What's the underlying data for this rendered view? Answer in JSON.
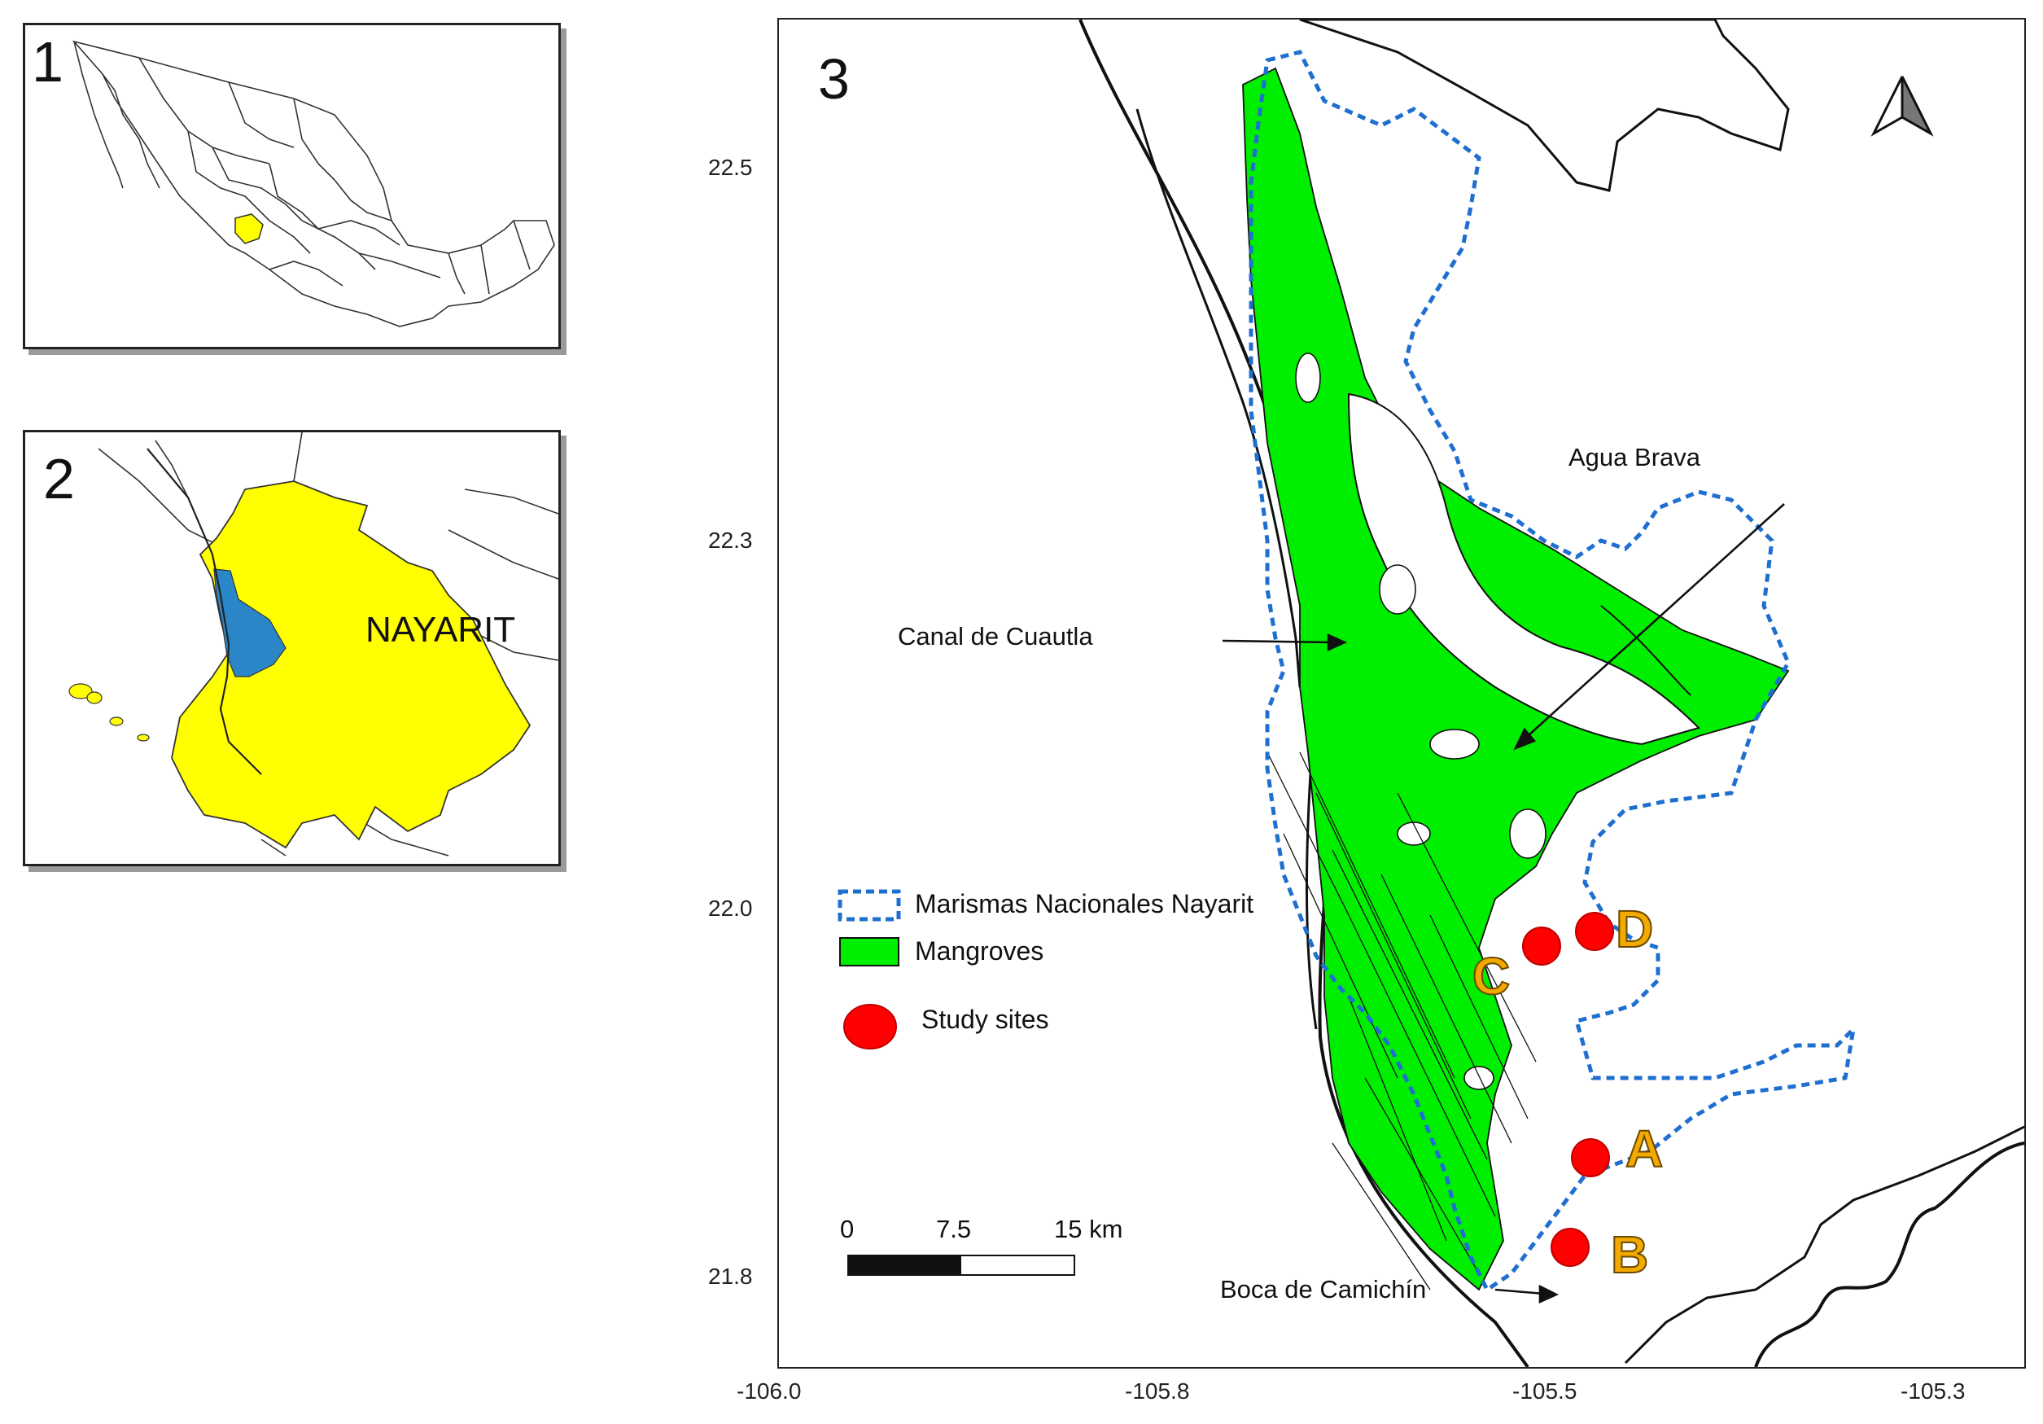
{
  "panels": {
    "p1": {
      "number": "1"
    },
    "p2": {
      "number": "2",
      "state_label": "NAYARIT"
    },
    "p3": {
      "number": "3"
    }
  },
  "axes": {
    "x_ticks": [
      "-106.0",
      "-105.8",
      "-105.5",
      "-105.3"
    ],
    "y_ticks": [
      "22.5",
      "22.3",
      "22.0",
      "21.8"
    ]
  },
  "place_labels": {
    "agua_brava": "Agua Brava",
    "canal": "Canal de Cuautla",
    "boca": "Boca de Camichín"
  },
  "sites": [
    "A",
    "B",
    "C",
    "D"
  ],
  "legend": {
    "marismas": "Marismas Nacionales Nayarit",
    "mangroves": "Mangroves",
    "study_sites": "Study sites"
  },
  "scale_bar": {
    "t0": "0",
    "t1": "7.5",
    "t2": "15 km"
  },
  "colors": {
    "mangrove": "#00ee00",
    "boundary": "#1f6fd1",
    "site": "#ff0000",
    "site_label": "#f2a900",
    "state": "#ffff00",
    "lagoon": "#2a86c6"
  }
}
